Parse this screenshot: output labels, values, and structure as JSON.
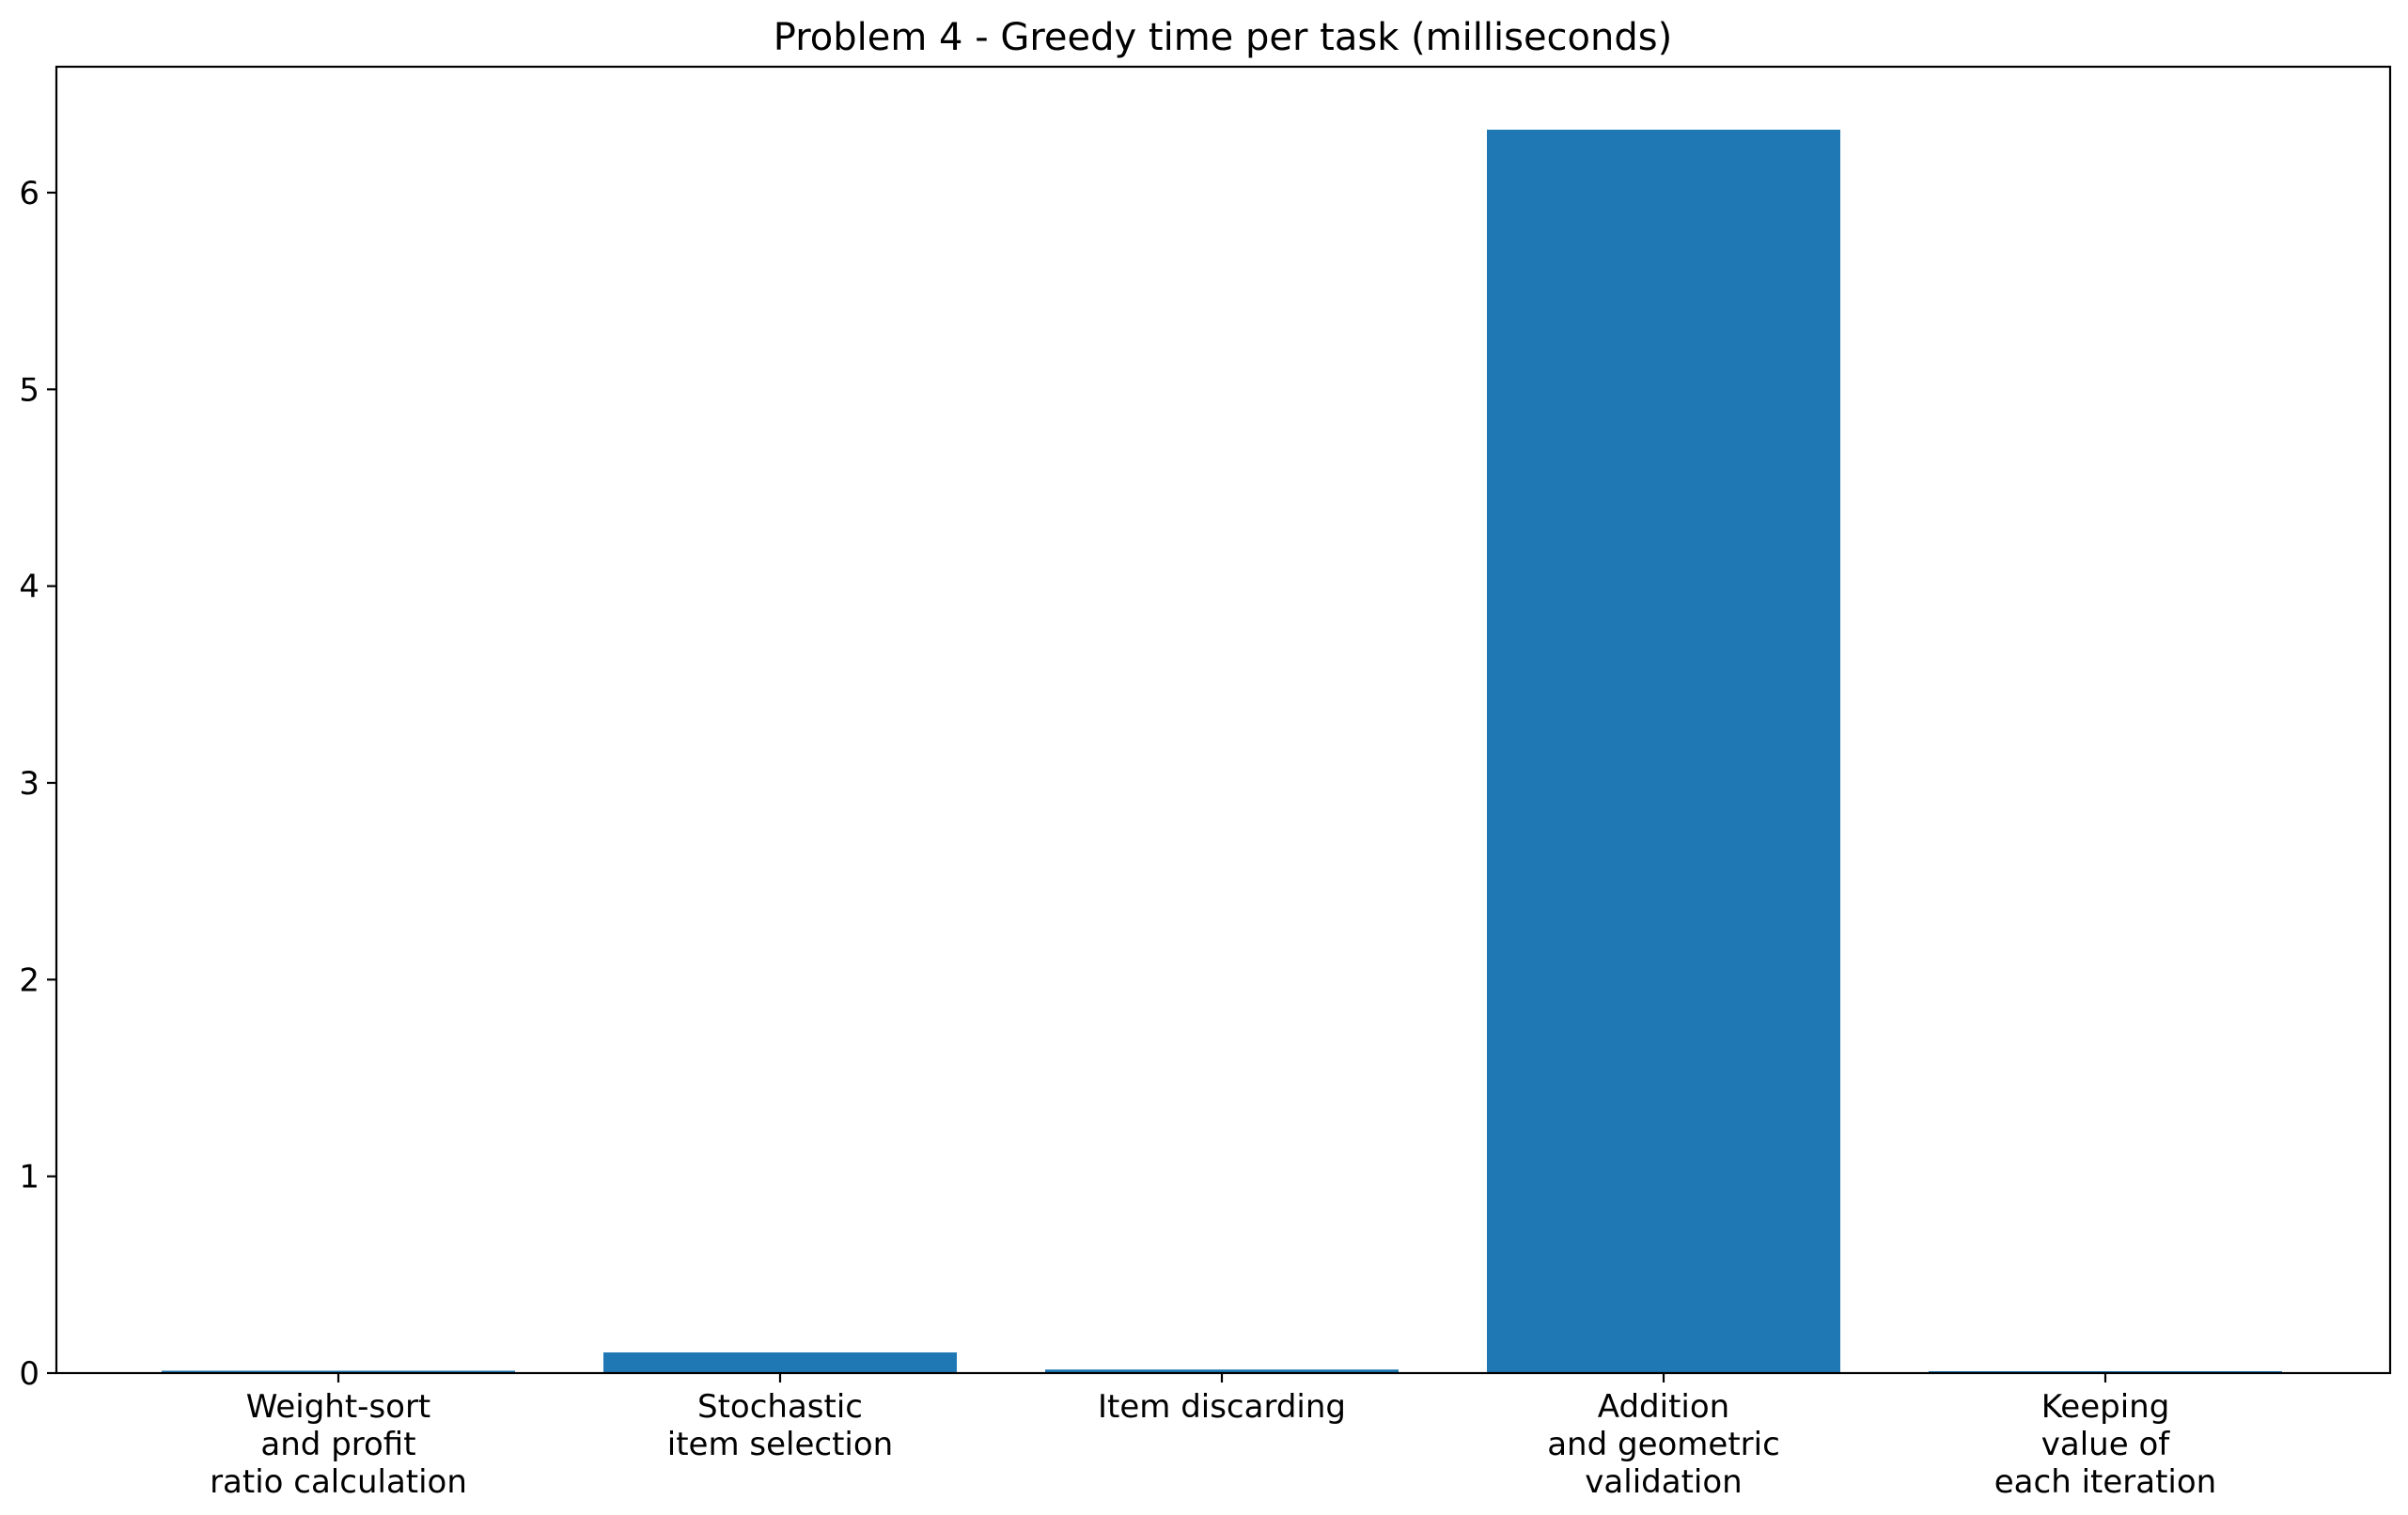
{
  "chart_data": {
    "type": "bar",
    "title": "Problem 4 - Greedy time per task (milliseconds)",
    "xlabel": "",
    "ylabel": "",
    "categories": [
      [
        "Weight-sort",
        "and profit",
        "ratio calculation"
      ],
      [
        "Stochastic",
        "item selection"
      ],
      [
        "Item discarding"
      ],
      [
        "Addition",
        "and geometric",
        "validation"
      ],
      [
        "Keeping",
        "value of",
        "each iteration"
      ]
    ],
    "values": [
      0.012,
      0.105,
      0.018,
      6.32,
      0.006
    ],
    "ylim": [
      0,
      6.64
    ],
    "yticks": [
      0,
      1,
      2,
      3,
      4,
      5,
      6
    ],
    "bar_color": "#1f77b4",
    "grid": false,
    "legend": "none"
  }
}
